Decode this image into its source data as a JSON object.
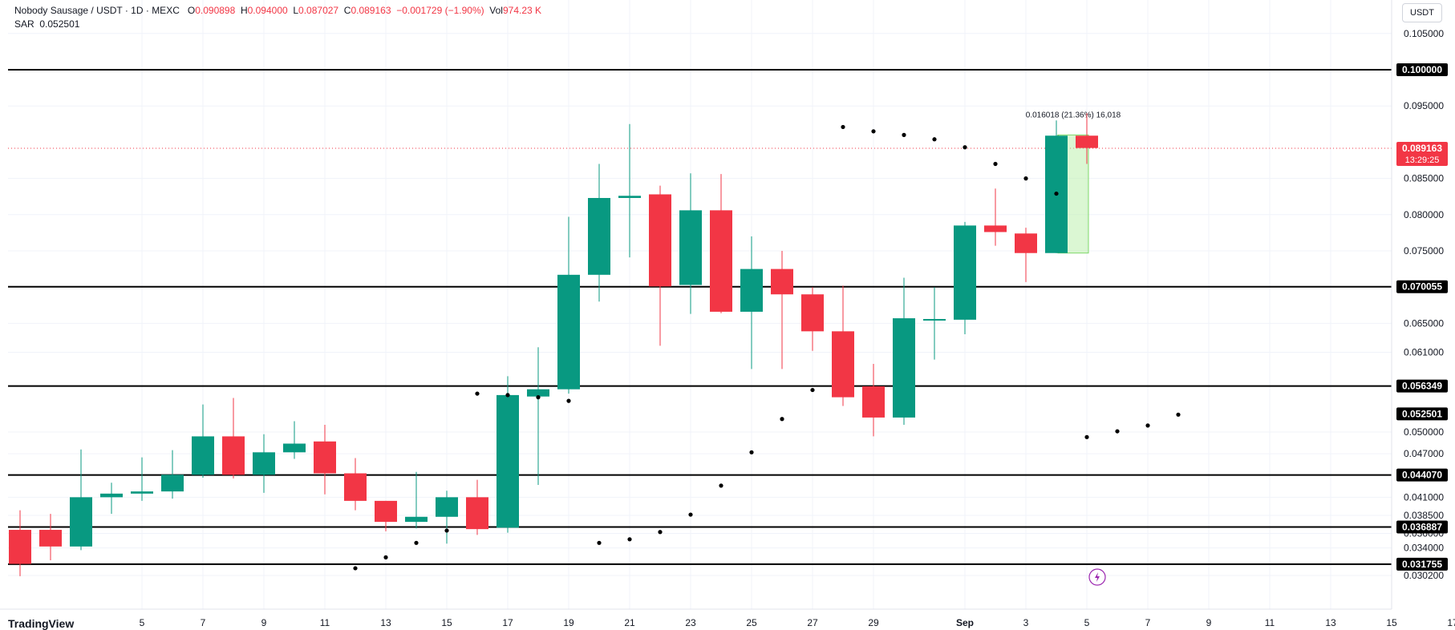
{
  "header": {
    "symbol": "Nobody Sausage / USDT · 1D · MEXC",
    "o_label": "O",
    "o_value": "0.090898",
    "h_label": "H",
    "h_value": "0.094000",
    "l_label": "L",
    "l_value": "0.087027",
    "c_label": "C",
    "c_value": "0.089163",
    "change": "−0.001729 (−1.90%)",
    "vol_label": "Vol",
    "vol_value": "974.23 K"
  },
  "indicator": {
    "label": "SAR",
    "value": "0.052501"
  },
  "currency_button": "USDT",
  "measure_label": "0.016018 (21.36%) 16,018",
  "footer_text": "TradingView",
  "colors": {
    "up": "#089981",
    "down": "#f23645",
    "line": "#000000",
    "sar": "#000000",
    "measure": "#b7f0a8"
  },
  "chart_data": {
    "type": "candlestick",
    "y_axis_ticks": [
      "0.105000",
      "0.095000",
      "0.085000",
      "0.080000",
      "0.075000",
      "0.065000",
      "0.061000",
      "0.050000",
      "0.047000",
      "0.041000",
      "0.038500",
      "0.036000",
      "0.034000",
      "0.030200"
    ],
    "x_axis_ticks": [
      "5",
      "7",
      "9",
      "11",
      "13",
      "15",
      "17",
      "19",
      "21",
      "23",
      "25",
      "27",
      "29",
      "Sep",
      "3",
      "5",
      "7",
      "9",
      "11",
      "13",
      "15",
      "17"
    ],
    "x_axis_positions": [
      4,
      6,
      8,
      10,
      12,
      14,
      16,
      18,
      20,
      22,
      24,
      26,
      28,
      31,
      33,
      35,
      37,
      39,
      41,
      43,
      45,
      47
    ],
    "horizontal_levels": [
      "0.100000",
      "0.070055",
      "0.056349",
      "0.044070",
      "0.036887",
      "0.031755"
    ],
    "sar_label": "0.052501",
    "current_price": "0.089163",
    "countdown": "13:29:25",
    "candles": [
      {
        "o": 0.0365,
        "h": 0.0392,
        "l": 0.0301,
        "c": 0.0318
      },
      {
        "o": 0.0365,
        "h": 0.0387,
        "l": 0.0323,
        "c": 0.0342
      },
      {
        "o": 0.0342,
        "h": 0.0476,
        "l": 0.0337,
        "c": 0.041
      },
      {
        "o": 0.041,
        "h": 0.043,
        "l": 0.0387,
        "c": 0.0415
      },
      {
        "o": 0.0415,
        "h": 0.0465,
        "l": 0.0405,
        "c": 0.0418
      },
      {
        "o": 0.0418,
        "h": 0.0475,
        "l": 0.0408,
        "c": 0.0441
      },
      {
        "o": 0.0441,
        "h": 0.0538,
        "l": 0.0437,
        "c": 0.0494
      },
      {
        "o": 0.0494,
        "h": 0.0547,
        "l": 0.0436,
        "c": 0.0441
      },
      {
        "o": 0.0441,
        "h": 0.0497,
        "l": 0.0416,
        "c": 0.0472
      },
      {
        "o": 0.0472,
        "h": 0.0515,
        "l": 0.0463,
        "c": 0.0484
      },
      {
        "o": 0.0487,
        "h": 0.051,
        "l": 0.0414,
        "c": 0.0443
      },
      {
        "o": 0.0443,
        "h": 0.0464,
        "l": 0.0392,
        "c": 0.0405
      },
      {
        "o": 0.0405,
        "h": 0.0405,
        "l": 0.0363,
        "c": 0.0376
      },
      {
        "o": 0.0376,
        "h": 0.0445,
        "l": 0.0367,
        "c": 0.0383
      },
      {
        "o": 0.0383,
        "h": 0.0419,
        "l": 0.0346,
        "c": 0.041
      },
      {
        "o": 0.041,
        "h": 0.0434,
        "l": 0.0358,
        "c": 0.0366
      },
      {
        "o": 0.0368,
        "h": 0.0577,
        "l": 0.0361,
        "c": 0.0551
      },
      {
        "o": 0.0549,
        "h": 0.0617,
        "l": 0.0427,
        "c": 0.0559
      },
      {
        "o": 0.0559,
        "h": 0.0797,
        "l": 0.0553,
        "c": 0.0717
      },
      {
        "o": 0.0717,
        "h": 0.087,
        "l": 0.068,
        "c": 0.0823
      },
      {
        "o": 0.0823,
        "h": 0.0925,
        "l": 0.0741,
        "c": 0.0826
      },
      {
        "o": 0.0828,
        "h": 0.084,
        "l": 0.0619,
        "c": 0.0701
      },
      {
        "o": 0.0703,
        "h": 0.0857,
        "l": 0.0663,
        "c": 0.0806
      },
      {
        "o": 0.0806,
        "h": 0.0856,
        "l": 0.0664,
        "c": 0.0666
      },
      {
        "o": 0.0666,
        "h": 0.077,
        "l": 0.0587,
        "c": 0.0725
      },
      {
        "o": 0.0725,
        "h": 0.075,
        "l": 0.0587,
        "c": 0.069
      },
      {
        "o": 0.069,
        "h": 0.07,
        "l": 0.0612,
        "c": 0.0639
      },
      {
        "o": 0.0639,
        "h": 0.0702,
        "l": 0.0536,
        "c": 0.0548
      },
      {
        "o": 0.0563,
        "h": 0.0594,
        "l": 0.0494,
        "c": 0.052
      },
      {
        "o": 0.052,
        "h": 0.0713,
        "l": 0.051,
        "c": 0.0657
      },
      {
        "o": 0.0655,
        "h": 0.07,
        "l": 0.06,
        "c": 0.0656
      },
      {
        "o": 0.0655,
        "h": 0.079,
        "l": 0.0635,
        "c": 0.0785
      },
      {
        "o": 0.0785,
        "h": 0.0836,
        "l": 0.0757,
        "c": 0.0776
      },
      {
        "o": 0.0774,
        "h": 0.0782,
        "l": 0.0707,
        "c": 0.0747
      },
      {
        "o": 0.0747,
        "h": 0.093,
        "l": 0.0747,
        "c": 0.0909
      },
      {
        "o": 0.0909,
        "h": 0.094,
        "l": 0.087,
        "c": 0.0892
      }
    ],
    "sar_points": [
      {
        "i": 11,
        "v": 0.0312
      },
      {
        "i": 12,
        "v": 0.0327
      },
      {
        "i": 13,
        "v": 0.0347
      },
      {
        "i": 14,
        "v": 0.0364
      },
      {
        "i": 15,
        "v": 0.0553
      },
      {
        "i": 16,
        "v": 0.0551
      },
      {
        "i": 17,
        "v": 0.0548
      },
      {
        "i": 18,
        "v": 0.0543
      },
      {
        "i": 19,
        "v": 0.0347
      },
      {
        "i": 20,
        "v": 0.0352
      },
      {
        "i": 21,
        "v": 0.0362
      },
      {
        "i": 22,
        "v": 0.0386
      },
      {
        "i": 23,
        "v": 0.0426
      },
      {
        "i": 24,
        "v": 0.0472
      },
      {
        "i": 25,
        "v": 0.0518
      },
      {
        "i": 26,
        "v": 0.0558
      },
      {
        "i": 27,
        "v": 0.0921
      },
      {
        "i": 28,
        "v": 0.0915
      },
      {
        "i": 29,
        "v": 0.091
      },
      {
        "i": 30,
        "v": 0.0904
      },
      {
        "i": 31,
        "v": 0.0893
      },
      {
        "i": 32,
        "v": 0.087
      },
      {
        "i": 33,
        "v": 0.085
      },
      {
        "i": 34,
        "v": 0.0829
      },
      {
        "i": 35,
        "v": 0.0493
      },
      {
        "i": 36,
        "v": 0.0501
      },
      {
        "i": 37,
        "v": 0.0509
      },
      {
        "i": 38,
        "v": 0.0524
      }
    ]
  }
}
